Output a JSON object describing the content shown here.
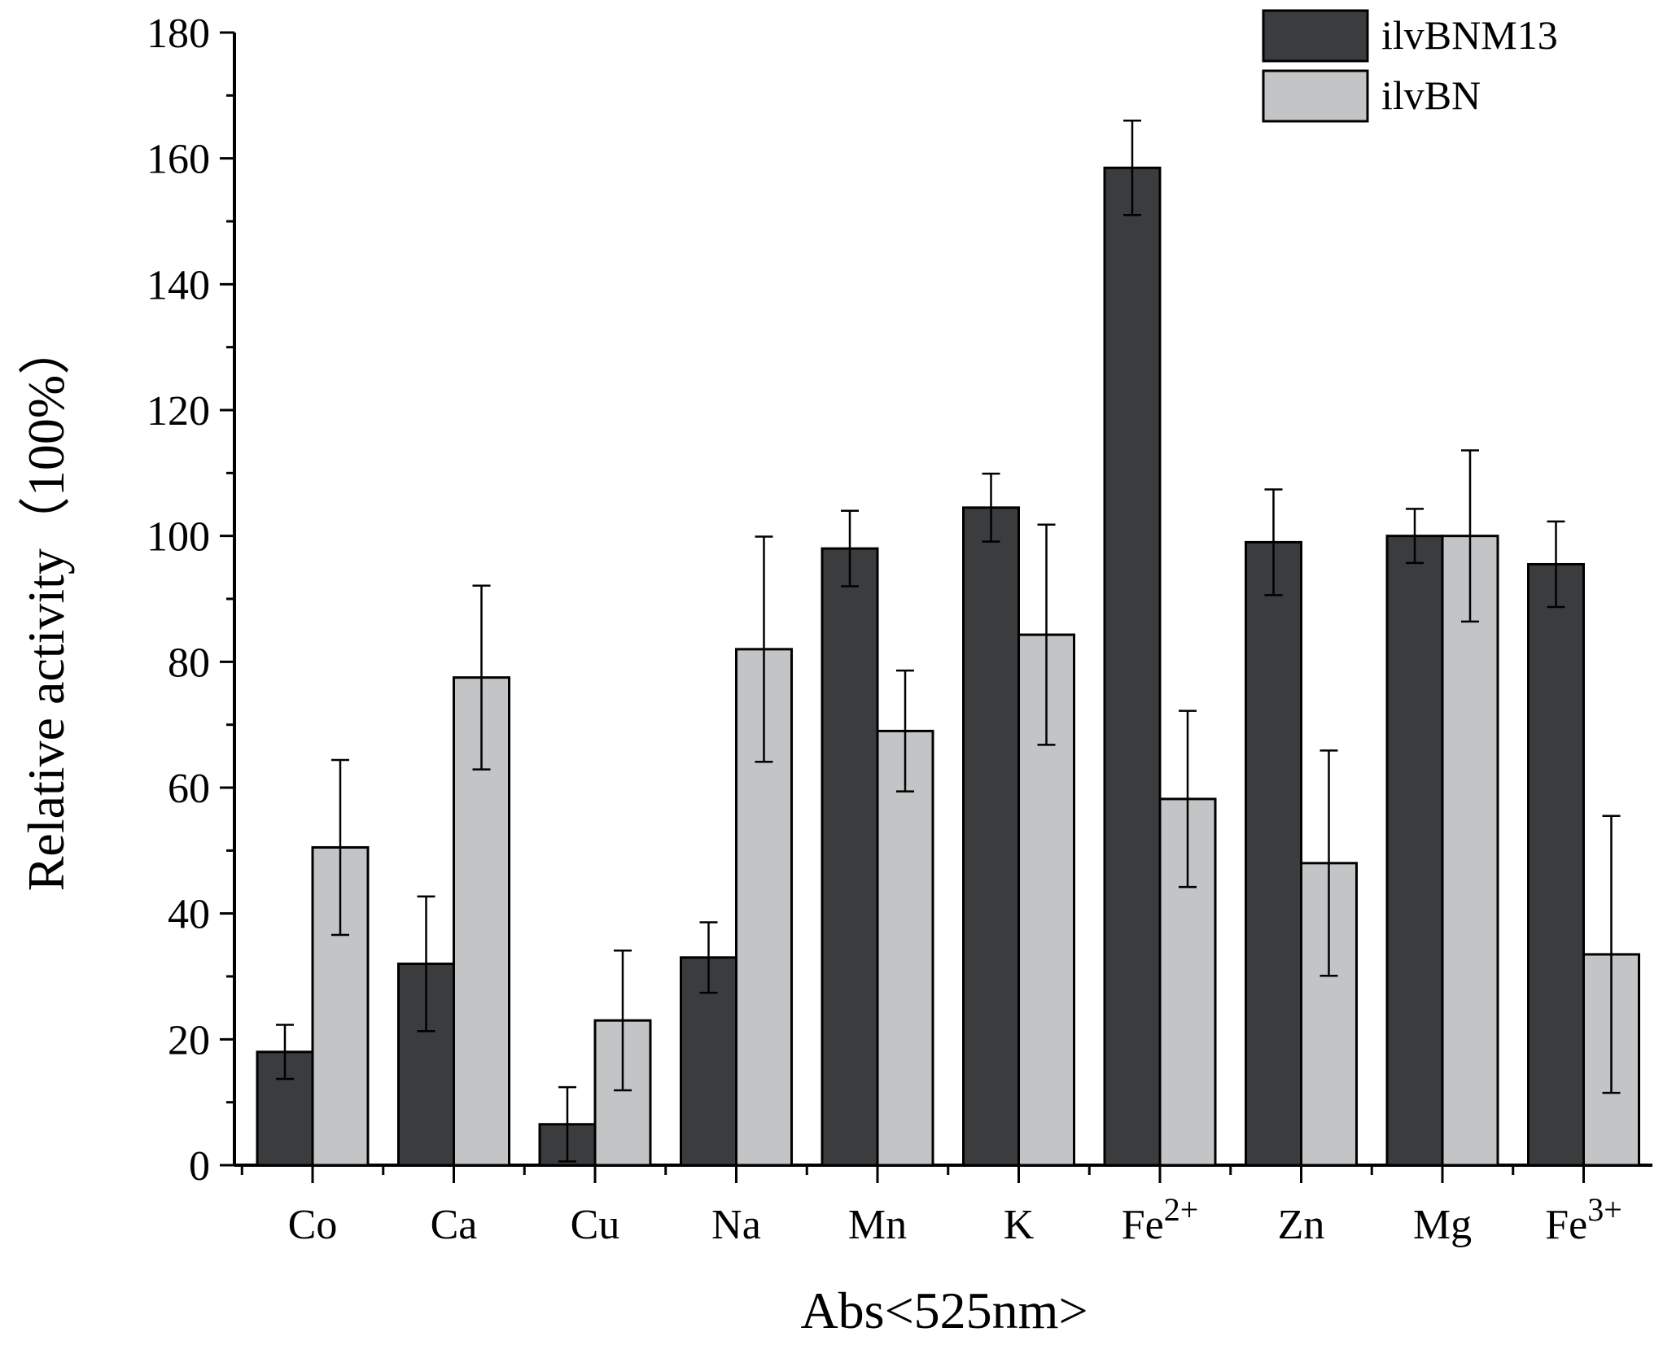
{
  "chart_data": {
    "type": "bar",
    "title": "",
    "xlabel": "Abs<525nm>",
    "ylabel": "Relative activity（100%）",
    "ylim": [
      0,
      180
    ],
    "yticks": [
      0,
      20,
      40,
      60,
      80,
      100,
      120,
      140,
      160,
      180
    ],
    "categories": [
      {
        "base": "Co",
        "sup": ""
      },
      {
        "base": "Ca",
        "sup": ""
      },
      {
        "base": "Cu",
        "sup": ""
      },
      {
        "base": "Na",
        "sup": ""
      },
      {
        "base": "Mn",
        "sup": ""
      },
      {
        "base": "K",
        "sup": ""
      },
      {
        "base": "Fe",
        "sup": "2+"
      },
      {
        "base": "Zn",
        "sup": ""
      },
      {
        "base": "Mg",
        "sup": ""
      },
      {
        "base": "Fe",
        "sup": "3+"
      }
    ],
    "series": [
      {
        "name": "ilvBNM13",
        "color": "#3a3c3e",
        "values": [
          18.0,
          32.0,
          6.5,
          33.0,
          98.0,
          104.5,
          158.5,
          99.0,
          100.0,
          95.5
        ],
        "errors": [
          4.3,
          10.7,
          5.9,
          5.6,
          6.0,
          5.4,
          7.5,
          8.4,
          4.3,
          6.8
        ]
      },
      {
        "name": "ilvBN",
        "color": "#c3c4c5",
        "values": [
          50.5,
          77.5,
          23.0,
          82.0,
          69.0,
          84.3,
          58.2,
          48.0,
          100.0,
          33.5
        ],
        "errors": [
          13.9,
          14.6,
          11.1,
          17.9,
          9.6,
          17.5,
          14.0,
          17.9,
          13.6,
          22.0
        ]
      }
    ],
    "legend_position": "top-right",
    "grid": false
  }
}
